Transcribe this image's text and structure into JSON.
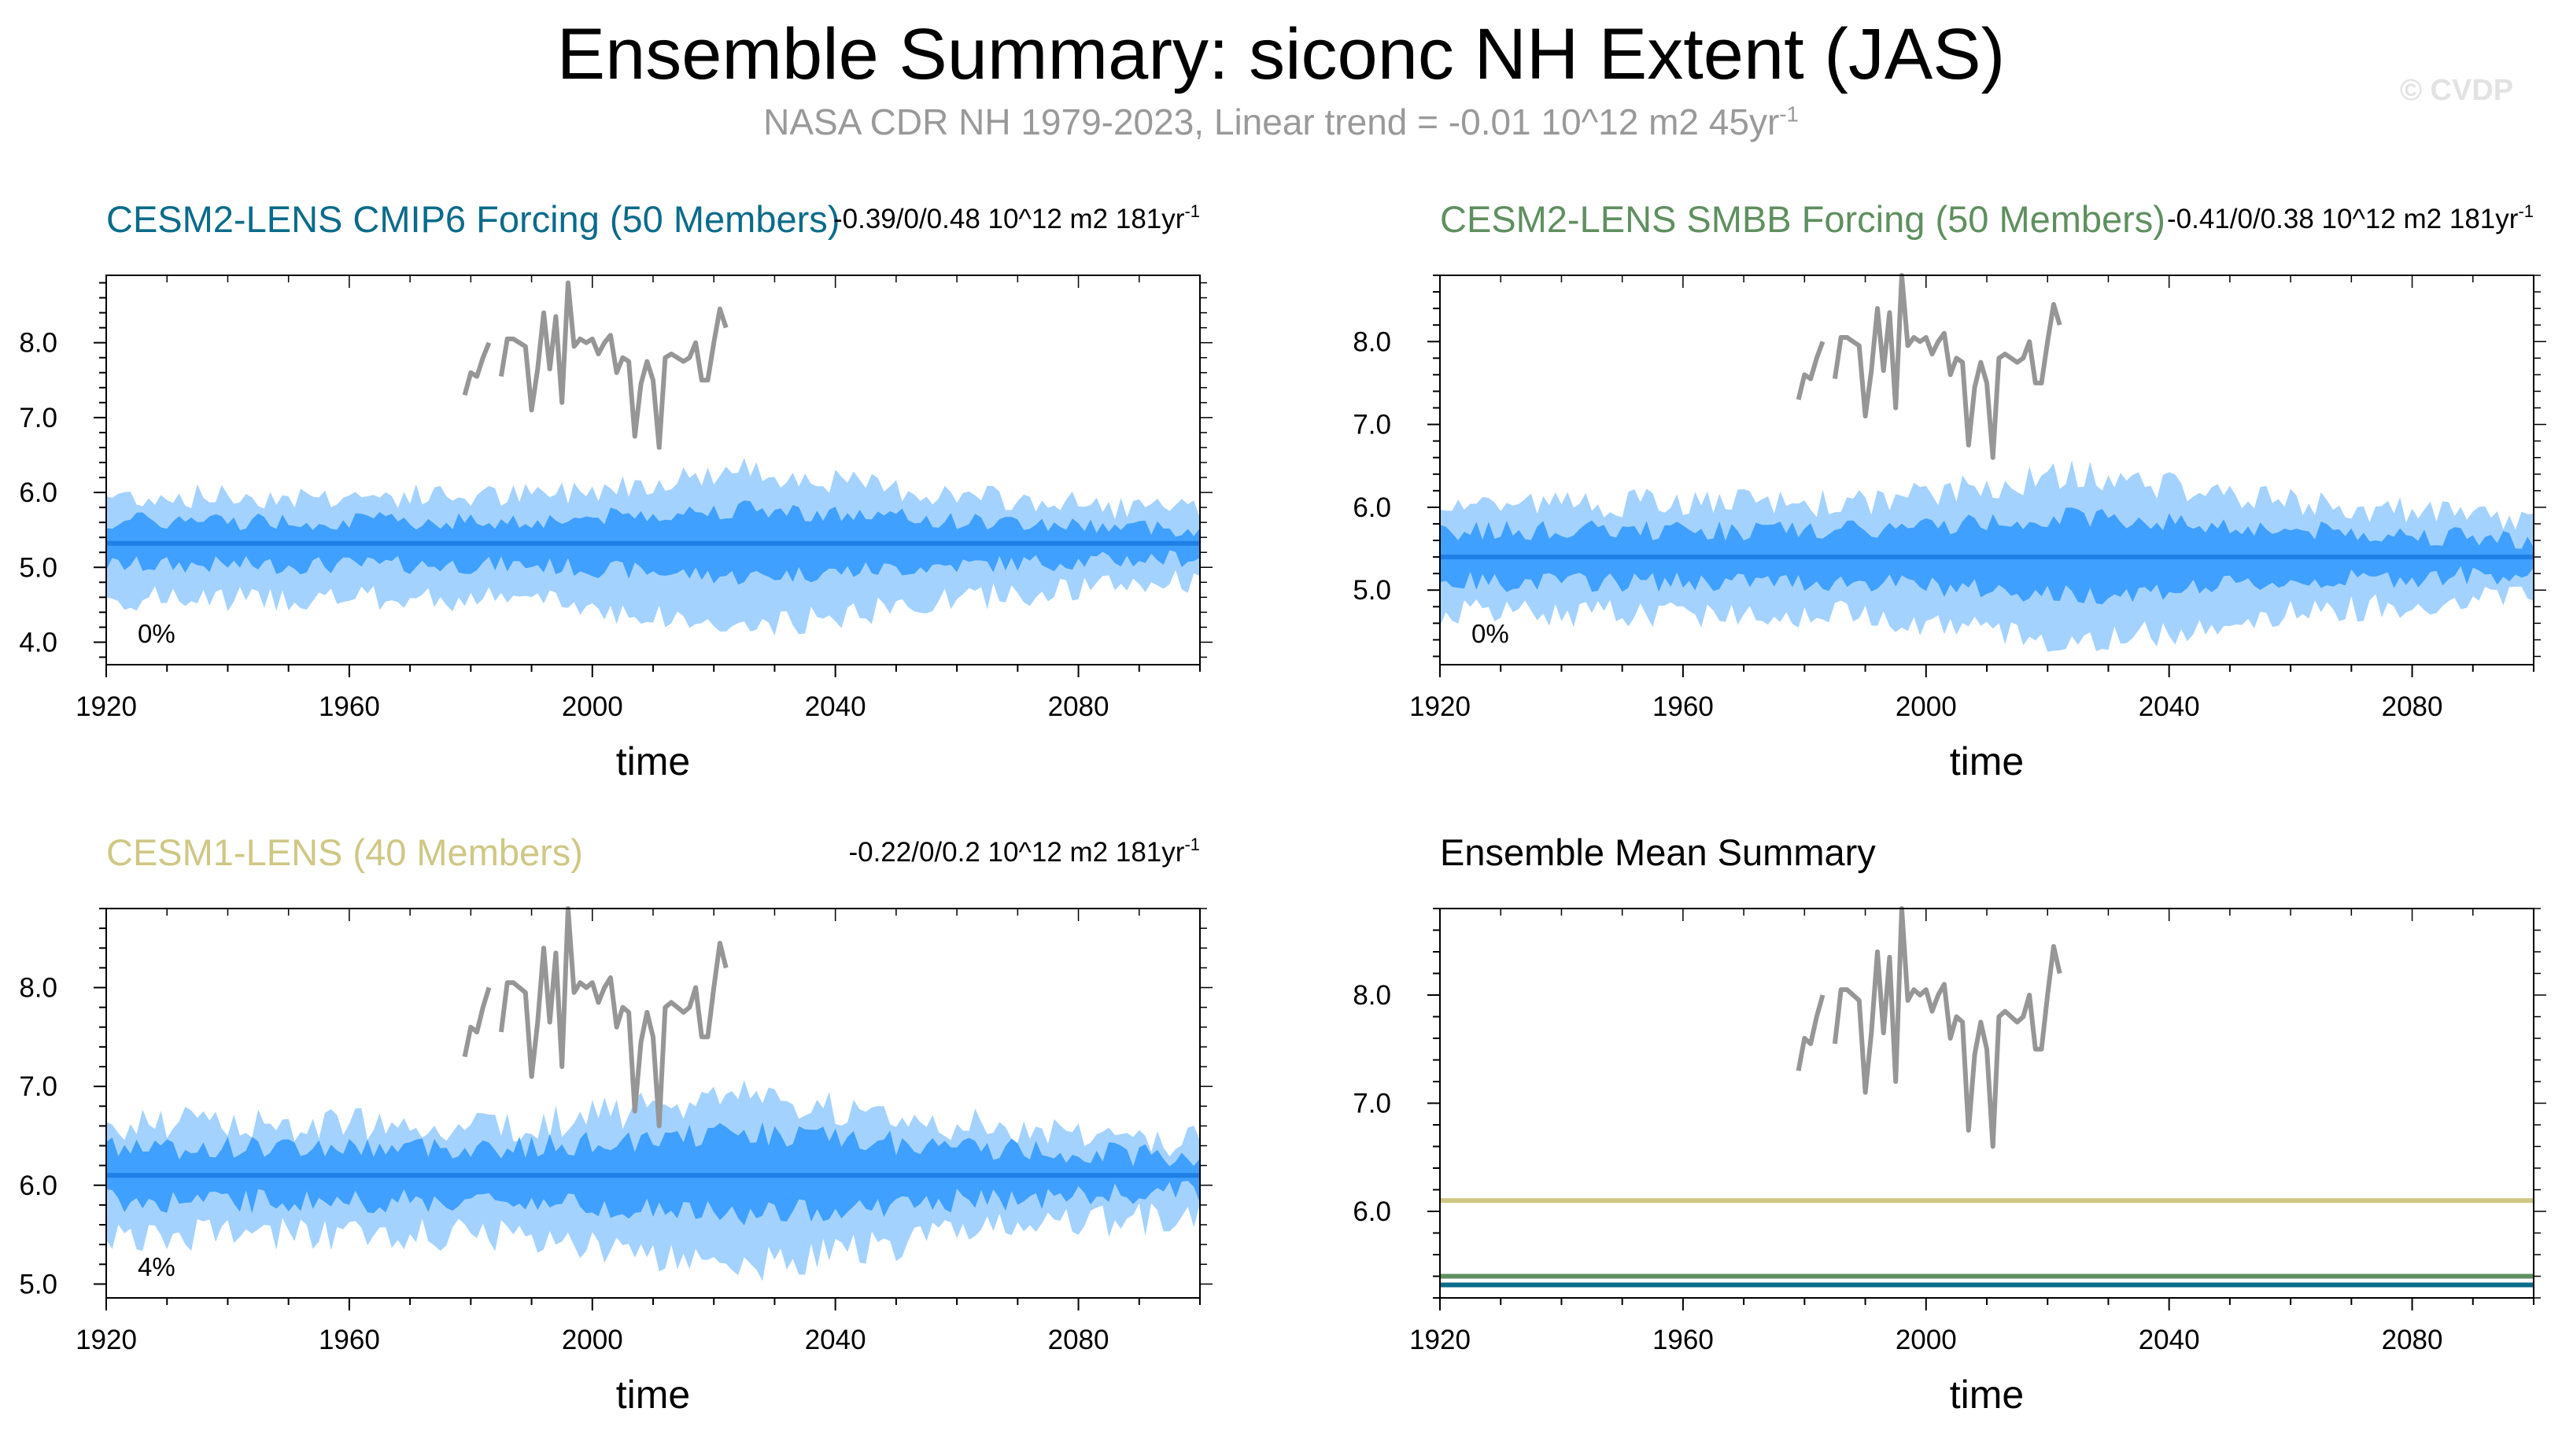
{
  "title": "Ensemble Summary: siconc NH Extent (JAS)",
  "subtitle_main": "NASA CDR NH 1979-2023, Linear trend = -0.01 10^12 m2 45yr",
  "subtitle_exp": "-1",
  "watermark": "© CVDP",
  "colors": {
    "outer_band": "#a4d2ff",
    "inner_band": "#3fa0ff",
    "mean_line": "#1e7fe6",
    "obs_line": "#969696",
    "cesm2_cmip6": "#0a6b8a",
    "cesm2_smbb": "#5f8f5f",
    "cesm1": "#cfc785"
  },
  "chart_data": [
    {
      "type": "area",
      "title": "CESM2-LENS CMIP6 Forcing (50 Members)",
      "title_color": "#0a6b8a",
      "stat_text": "-0.39/0/0.48 10^12 m2 181yr",
      "stat_exp": "-1",
      "percent_label": "0%",
      "xlabel": "time",
      "xlim": [
        1920,
        2100
      ],
      "ylim": [
        3.7,
        8.9
      ],
      "x_ticks": [
        1920,
        1960,
        2000,
        2040,
        2080
      ],
      "y_ticks": [
        "4.0",
        "5.0",
        "6.0",
        "7.0",
        "8.0"
      ],
      "ensemble_mean": 5.32,
      "series": [
        {
          "name": "ensemble mean",
          "values": [
            5.32,
            5.32
          ]
        },
        {
          "name": "outer band (min/max)",
          "lower_mean": 4.58,
          "upper_mean": 5.95
        },
        {
          "name": "inner band (25th/75th)",
          "lower_mean": 5.03,
          "upper_mean": 5.62
        }
      ]
    },
    {
      "type": "area",
      "title": "CESM2-LENS SMBB Forcing (50 Members)",
      "title_color": "#5f8f5f",
      "stat_text": "-0.41/0/0.38 10^12 m2 181yr",
      "stat_exp": "-1",
      "percent_label": "0%",
      "xlabel": "time",
      "xlim": [
        1920,
        2100
      ],
      "ylim": [
        4.1,
        8.8
      ],
      "x_ticks": [
        1920,
        1960,
        2000,
        2040,
        2080
      ],
      "y_ticks": [
        "5.0",
        "6.0",
        "7.0",
        "8.0"
      ],
      "ensemble_mean": 5.4,
      "series": [
        {
          "name": "ensemble mean",
          "values": [
            5.4,
            5.4
          ]
        },
        {
          "name": "outer band (min/max)",
          "lower_mean": 4.72,
          "upper_mean": 6.05
        },
        {
          "name": "inner band (25th/75th)",
          "lower_mean": 5.1,
          "upper_mean": 5.72
        }
      ]
    },
    {
      "type": "area",
      "title": "CESM1-LENS (40 Members)",
      "title_color": "#cfc785",
      "stat_text": "-0.22/0/0.2 10^12 m2 181yr",
      "stat_exp": "-1",
      "percent_label": "4%",
      "xlabel": "time",
      "xlim": [
        1920,
        2100
      ],
      "ylim": [
        4.86,
        8.8
      ],
      "x_ticks": [
        1920,
        1960,
        2000,
        2040,
        2080
      ],
      "y_ticks": [
        "5.0",
        "6.0",
        "7.0",
        "8.0"
      ],
      "ensemble_mean": 6.1,
      "series": [
        {
          "name": "ensemble mean",
          "values": [
            6.1,
            6.1
          ]
        },
        {
          "name": "outer band (min/max)",
          "lower_mean": 5.5,
          "upper_mean": 6.62
        },
        {
          "name": "inner band (25th/75th)",
          "lower_mean": 5.84,
          "upper_mean": 6.38
        }
      ]
    },
    {
      "type": "line",
      "title": "Ensemble Mean Summary",
      "title_color": "#000000",
      "xlabel": "time",
      "xlim": [
        1920,
        2100
      ],
      "ylim": [
        5.2,
        8.8
      ],
      "x_ticks": [
        1920,
        1960,
        2000,
        2040,
        2080
      ],
      "y_ticks": [
        "6.0",
        "7.0",
        "8.0"
      ],
      "series": [
        {
          "name": "CESM1-LENS",
          "value": 6.1,
          "color": "#cfc785"
        },
        {
          "name": "CESM2-LENS SMBB",
          "value": 5.4,
          "color": "#5f8f5f"
        },
        {
          "name": "CESM2-LENS CMIP6",
          "value": 5.32,
          "color": "#0a6b8a"
        }
      ]
    }
  ],
  "observations": {
    "name": "NASA CDR NH",
    "x": [
      1979,
      1980,
      1981,
      1982,
      1983,
      1984,
      1985,
      1986,
      1987,
      1988,
      1989,
      1990,
      1991,
      1992,
      1993,
      1994,
      1995,
      1996,
      1997,
      1998,
      1999,
      2000,
      2001,
      2002,
      2003,
      2004,
      2005,
      2006,
      2007,
      2008,
      2009,
      2010,
      2011,
      2012,
      2013,
      2014,
      2015,
      2016,
      2017,
      2018,
      2019,
      2020,
      2021,
      2022,
      2023
    ],
    "y": [
      7.3,
      7.6,
      7.55,
      7.8,
      8.0,
      null,
      7.55,
      8.05,
      8.05,
      8.0,
      7.95,
      7.1,
      7.65,
      8.4,
      7.65,
      8.35,
      7.2,
      8.8,
      7.95,
      8.05,
      8.0,
      8.05,
      7.85,
      8.0,
      8.1,
      7.6,
      7.8,
      7.75,
      6.75,
      7.45,
      7.75,
      7.5,
      6.6,
      7.8,
      7.85,
      7.8,
      7.75,
      7.8,
      8.0,
      7.5,
      7.5,
      8.0,
      8.45,
      8.2,
      null
    ]
  }
}
